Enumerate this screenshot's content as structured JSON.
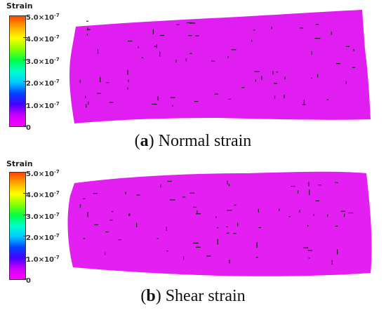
{
  "panels": [
    {
      "legend_title": "Strain",
      "ticks": [
        "5.0×10",
        "4.0×10",
        "3.0×10",
        "2.0×10",
        "1.0×10",
        "0"
      ],
      "tick_exponents": [
        "-7",
        "-7",
        "-7",
        "-7",
        "-7",
        ""
      ],
      "caption_letter": "a",
      "caption_text": "Normal strain",
      "specimen_color": "#e11ef2"
    },
    {
      "legend_title": "Strain",
      "ticks": [
        "5.0×10",
        "4.0×10",
        "3.0×10",
        "2.0×10",
        "1.0×10",
        "0"
      ],
      "tick_exponents": [
        "-7",
        "-7",
        "-7",
        "-7",
        "-7",
        ""
      ],
      "caption_letter": "b",
      "caption_text": "Shear strain",
      "specimen_color": "#e41ff1"
    }
  ],
  "colorbar_colors": [
    "#ff4400",
    "#ffaa00",
    "#ffff00",
    "#88ff00",
    "#00ff44",
    "#00ffcc",
    "#00ccff",
    "#0044ff",
    "#4400ff",
    "#cc00ff",
    "#ff00ff"
  ]
}
